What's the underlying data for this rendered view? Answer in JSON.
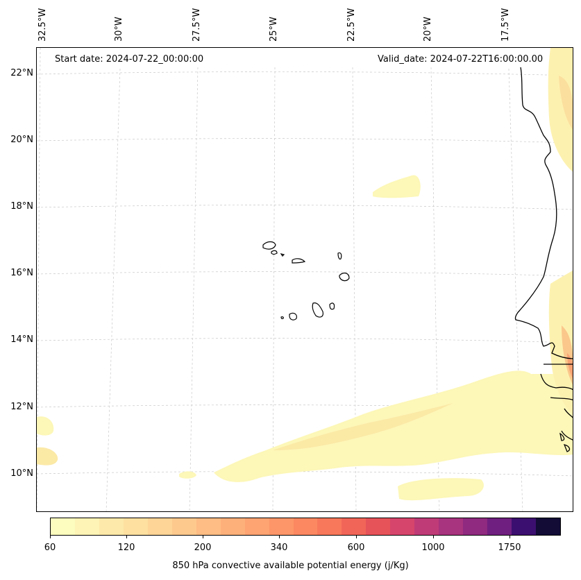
{
  "map": {
    "start_date": "Start date: 2024-07-22_00:00:00",
    "valid_date": "Valid_date: 2024-07-22T16:00:00.00",
    "lat_labels": [
      "22°N",
      "20°N",
      "18°N",
      "16°N",
      "14°N",
      "12°N",
      "10°N"
    ],
    "lon_labels": [
      "32.5°W",
      "30°W",
      "27.5°W",
      "25°W",
      "22.5°W",
      "20°W",
      "17.5°W"
    ],
    "features": [
      "coastline-west-africa",
      "cape-verde-islands",
      "cape-field-contours",
      "graticule-dashed"
    ]
  },
  "colorbar": {
    "label": "850 hPa convective available potential energy (j/Kg)",
    "tick_labels": [
      "60",
      "120",
      "200",
      "340",
      "600",
      "1000",
      "1750"
    ],
    "colors": [
      "#fcfdbf",
      "#fdf4b5",
      "#fde9a9",
      "#fee0a0",
      "#fed597",
      "#fec98d",
      "#febd84",
      "#feb07a",
      "#fea372",
      "#fd9668",
      "#fb8861",
      "#f8785b",
      "#f16558",
      "#e65359",
      "#d6456c",
      "#bf3b77",
      "#a8337f",
      "#8f2a80",
      "#6f1f80",
      "#3b0f6f",
      "#120c37"
    ]
  }
}
